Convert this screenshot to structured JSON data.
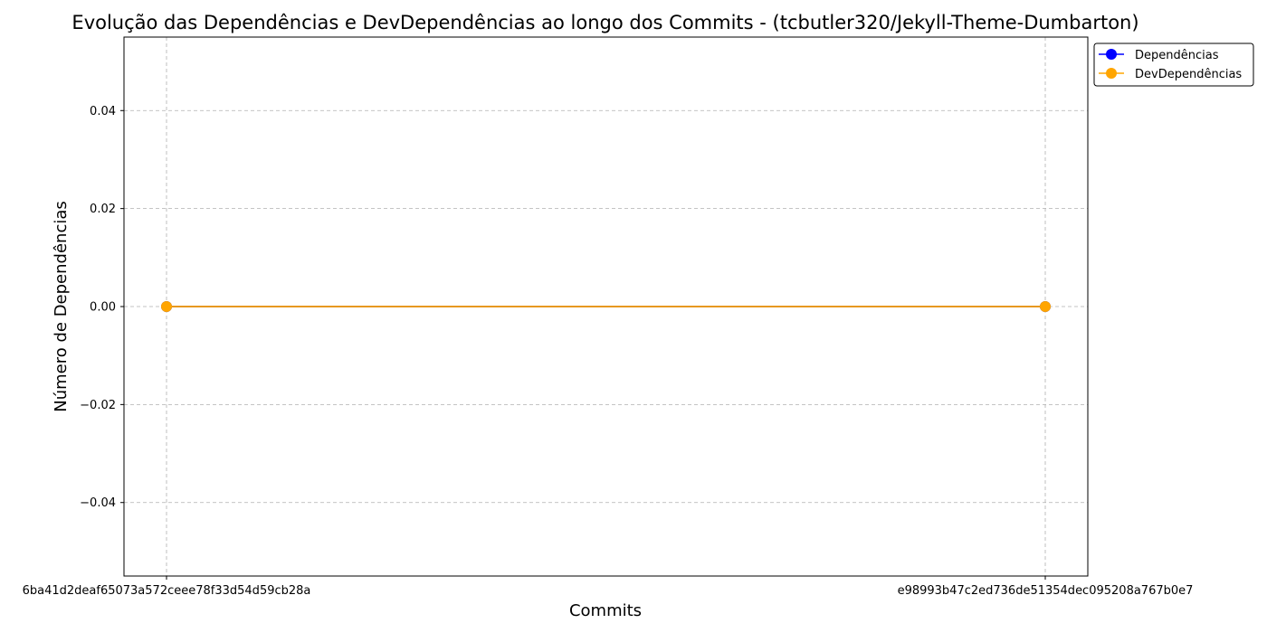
{
  "chart_data": {
    "type": "line",
    "title": "Evolução das Dependências e DevDependências ao longo dos Commits - (tcbutler320/Jekyll-Theme-Dumbarton)",
    "xlabel": "Commits",
    "ylabel": "Número de Dependências",
    "categories": [
      "6ba41d2deaf65073a572ceee78f33d54d59cb28a",
      "e98993b47c2ed736de51354dec095208a767b0e7"
    ],
    "ylim": [
      -0.055,
      0.055
    ],
    "yticks": [
      -0.04,
      -0.02,
      0.0,
      0.02,
      0.04
    ],
    "ytick_labels": [
      "−0.04",
      "−0.02",
      "0.00",
      "0.02",
      "0.04"
    ],
    "grid": true,
    "legend_position": "outside top-right",
    "series": [
      {
        "name": "Dependências",
        "values": [
          0,
          0
        ],
        "color": "#0000ff",
        "marker": "circle"
      },
      {
        "name": "DevDependências",
        "values": [
          0,
          0
        ],
        "color": "#ffa500",
        "marker": "circle"
      }
    ]
  }
}
